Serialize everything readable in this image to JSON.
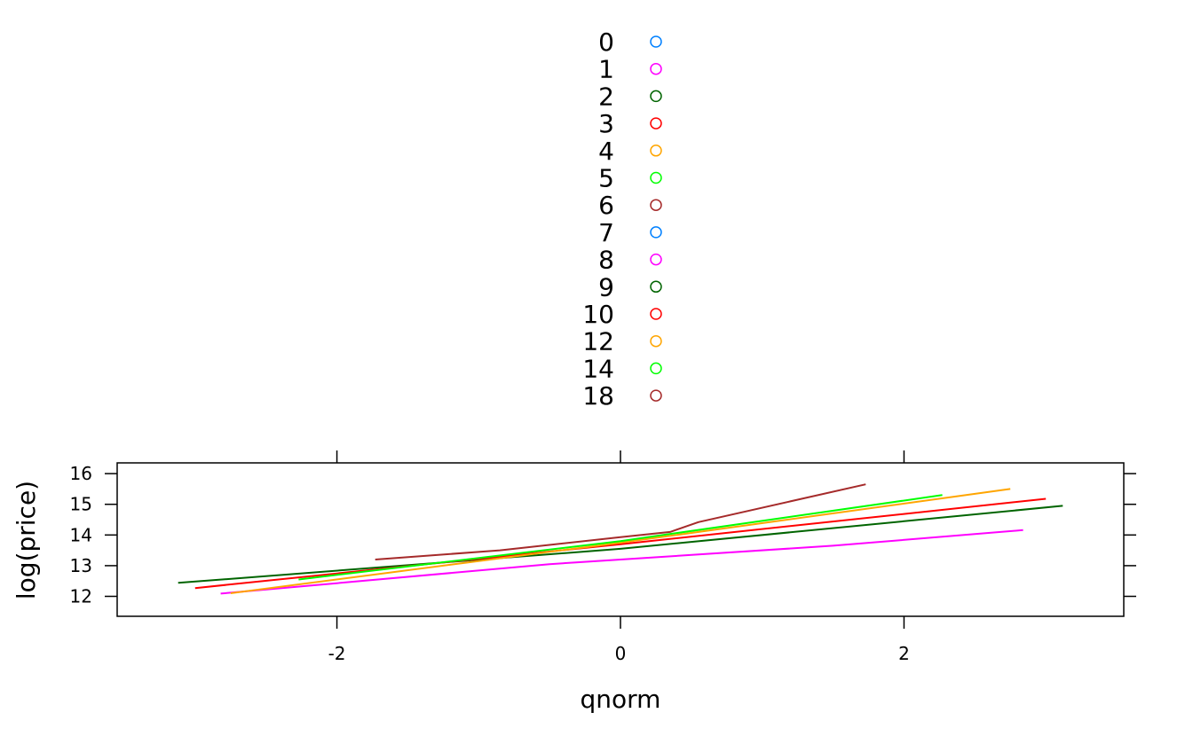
{
  "chart_data": {
    "type": "line",
    "xlabel": "qnorm",
    "ylabel": "log(price)",
    "xlim": [
      -3.55,
      3.55
    ],
    "ylim": [
      11.35,
      16.35
    ],
    "xticks": [
      -2,
      0,
      2
    ],
    "xtick_labels": [
      "-2",
      "0",
      "2"
    ],
    "yticks": [
      12,
      13,
      14,
      15,
      16
    ],
    "ytick_labels": [
      "12",
      "13",
      "14",
      "15",
      "16"
    ],
    "grid": false,
    "legend_position": "top",
    "legend": [
      {
        "label": "0",
        "color": "#0080ff"
      },
      {
        "label": "1",
        "color": "#ff00ff"
      },
      {
        "label": "2",
        "color": "#006400"
      },
      {
        "label": "3",
        "color": "#ff0000"
      },
      {
        "label": "4",
        "color": "#ffa500"
      },
      {
        "label": "5",
        "color": "#00ff00"
      },
      {
        "label": "6",
        "color": "#a52a2a"
      },
      {
        "label": "7",
        "color": "#0080ff"
      },
      {
        "label": "8",
        "color": "#ff00ff"
      },
      {
        "label": "9",
        "color": "#006400"
      },
      {
        "label": "10",
        "color": "#ff0000"
      },
      {
        "label": "12",
        "color": "#ffa500"
      },
      {
        "label": "14",
        "color": "#00ff00"
      },
      {
        "label": "18",
        "color": "#a52a2a"
      }
    ],
    "series": [
      {
        "color": "#ff00ff",
        "points": [
          [
            -2.82,
            12.09
          ],
          [
            -0.5,
            13.05
          ],
          [
            1.5,
            13.65
          ],
          [
            2.84,
            14.16
          ]
        ]
      },
      {
        "color": "#006400",
        "points": [
          [
            -3.12,
            12.44
          ],
          [
            0.0,
            13.55
          ],
          [
            3.12,
            14.95
          ]
        ]
      },
      {
        "color": "#ff0000",
        "points": [
          [
            -3.0,
            12.27
          ],
          [
            0.0,
            13.7
          ],
          [
            3.0,
            15.18
          ]
        ]
      },
      {
        "color": "#ffa500",
        "points": [
          [
            -2.75,
            12.1
          ],
          [
            0.0,
            13.75
          ],
          [
            2.75,
            15.5
          ]
        ]
      },
      {
        "color": "#00ff00",
        "points": [
          [
            -2.27,
            12.55
          ],
          [
            0.0,
            13.8
          ],
          [
            2.27,
            15.3
          ]
        ]
      },
      {
        "color": "#a52a2a",
        "points": [
          [
            -1.73,
            13.2
          ],
          [
            -0.85,
            13.5
          ],
          [
            0.0,
            13.93
          ],
          [
            0.35,
            14.1
          ],
          [
            0.55,
            14.42
          ],
          [
            1.73,
            15.65
          ]
        ]
      }
    ]
  }
}
